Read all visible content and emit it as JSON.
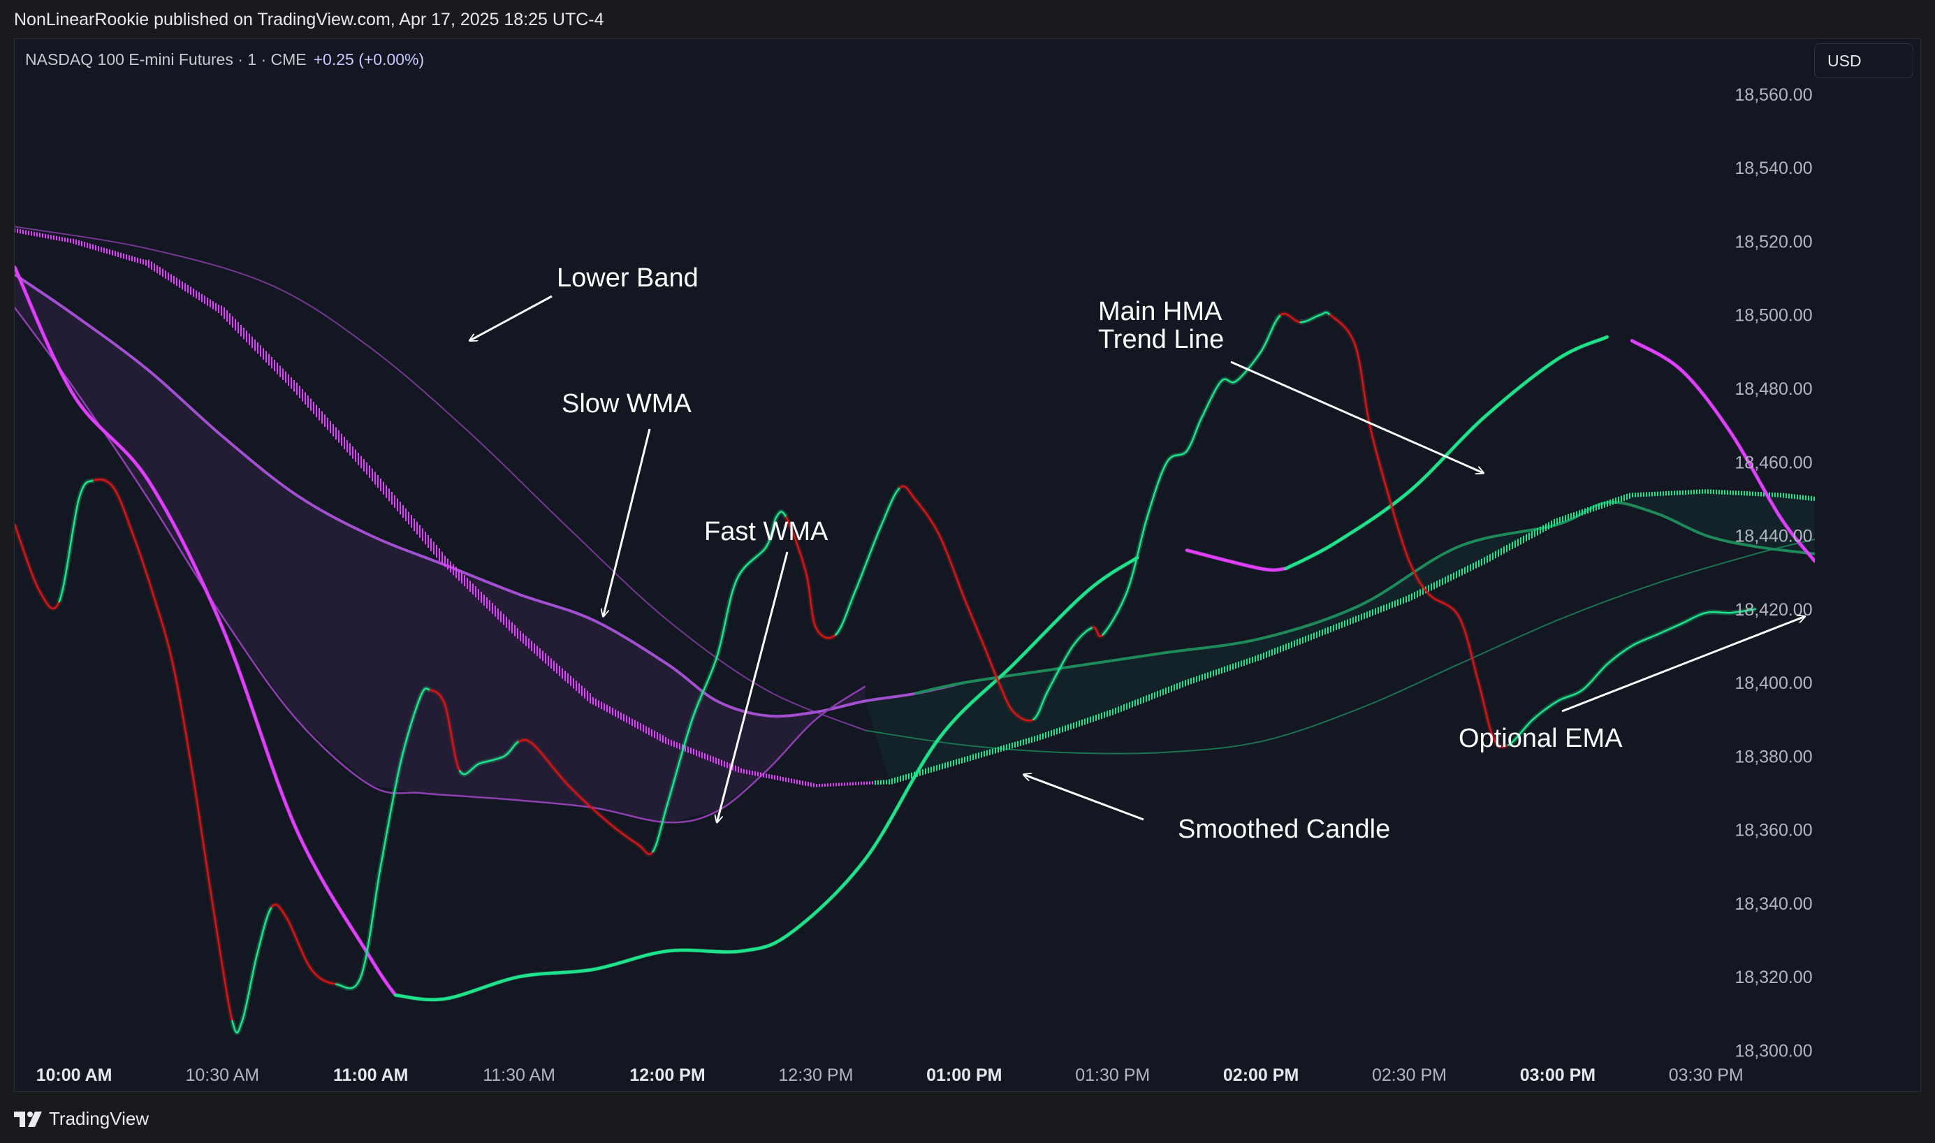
{
  "header": {
    "publisher": "NonLinearRookie published on TradingView.com, Apr 17, 2025 18:25 UTC-4"
  },
  "symbol": {
    "title": "NASDAQ 100 E-mini Futures · 1 · CME",
    "change": "+0.25 (+0.00%)"
  },
  "currency": {
    "label": "USD"
  },
  "footer": {
    "brand": "TradingView"
  },
  "colors": {
    "background": "#131722",
    "bull": "#1fe38a",
    "bull_dim": "#1e8a5a",
    "bear": "#d01818",
    "magenta": "#e040fb",
    "purple": "#8e3fb0",
    "text": "#ffffff"
  },
  "chart_data": {
    "type": "line",
    "title": "",
    "xlabel": "",
    "ylabel": "",
    "ylim": [
      18290,
      18575
    ],
    "xlim": [
      "09:48",
      "15:52"
    ],
    "y_ticks": [
      "18,560.00",
      "18,540.00",
      "18,520.00",
      "18,500.00",
      "18,480.00",
      "18,460.00",
      "18,440.00",
      "18,420.00",
      "18,400.00",
      "18,380.00",
      "18,360.00",
      "18,340.00",
      "18,320.00",
      "18,300.00"
    ],
    "x_ticks": [
      {
        "label": "10:00 AM",
        "time": "10:00",
        "bold": true
      },
      {
        "label": "10:30 AM",
        "time": "10:30",
        "bold": false
      },
      {
        "label": "11:00 AM",
        "time": "11:00",
        "bold": true
      },
      {
        "label": "11:30 AM",
        "time": "11:30",
        "bold": false
      },
      {
        "label": "12:00 PM",
        "time": "12:00",
        "bold": true
      },
      {
        "label": "12:30 PM",
        "time": "12:30",
        "bold": false
      },
      {
        "label": "01:00 PM",
        "time": "13:00",
        "bold": true
      },
      {
        "label": "01:30 PM",
        "time": "13:30",
        "bold": false
      },
      {
        "label": "02:00 PM",
        "time": "14:00",
        "bold": true
      },
      {
        "label": "02:30 PM",
        "time": "14:30",
        "bold": false
      },
      {
        "label": "03:00 PM",
        "time": "15:00",
        "bold": true
      },
      {
        "label": "03:30 PM",
        "time": "15:30",
        "bold": false
      }
    ],
    "grid": false,
    "series": [
      {
        "key": "lower_band",
        "style": "thin",
        "points": [
          [
            "09:48",
            18524
          ],
          [
            "10:15",
            18518
          ],
          [
            "10:40",
            18508
          ],
          [
            "11:00",
            18491
          ],
          [
            "11:20",
            18468
          ],
          [
            "11:40",
            18442
          ],
          [
            "12:00",
            18417
          ],
          [
            "12:20",
            18398
          ],
          [
            "12:40",
            18387
          ],
          [
            "13:00",
            18383
          ],
          [
            "13:20",
            18381
          ],
          [
            "13:40",
            18381
          ],
          [
            "14:00",
            18384
          ],
          [
            "14:20",
            18393
          ],
          [
            "14:40",
            18405
          ],
          [
            "15:00",
            18417
          ],
          [
            "15:20",
            18427
          ],
          [
            "15:40",
            18435
          ],
          [
            "15:52",
            18439
          ]
        ]
      },
      {
        "key": "slow_wma",
        "style": "medium",
        "points": [
          [
            "09:48",
            18511
          ],
          [
            "10:00",
            18500
          ],
          [
            "10:15",
            18485
          ],
          [
            "10:30",
            18467
          ],
          [
            "10:45",
            18451
          ],
          [
            "11:00",
            18440
          ],
          [
            "11:15",
            18432
          ],
          [
            "11:30",
            18424
          ],
          [
            "11:45",
            18417
          ],
          [
            "12:00",
            18405
          ],
          [
            "12:10",
            18395
          ],
          [
            "12:20",
            18391
          ],
          [
            "12:30",
            18392
          ],
          [
            "12:40",
            18395
          ],
          [
            "12:50",
            18397
          ],
          [
            "13:00",
            18400
          ],
          [
            "13:20",
            18404
          ],
          [
            "13:40",
            18408
          ],
          [
            "14:00",
            18412
          ],
          [
            "14:20",
            18421
          ],
          [
            "14:40",
            18437
          ],
          [
            "15:00",
            18443
          ],
          [
            "15:10",
            18449
          ],
          [
            "15:20",
            18446
          ],
          [
            "15:30",
            18440
          ],
          [
            "15:40",
            18437
          ],
          [
            "15:52",
            18435
          ]
        ]
      },
      {
        "key": "fast_wma",
        "style": "thin",
        "points": [
          [
            "09:48",
            18502
          ],
          [
            "10:00",
            18480
          ],
          [
            "10:15",
            18450
          ],
          [
            "10:30",
            18418
          ],
          [
            "10:45",
            18390
          ],
          [
            "11:00",
            18372
          ],
          [
            "11:10",
            18370
          ],
          [
            "11:20",
            18369
          ],
          [
            "11:30",
            18368
          ],
          [
            "11:45",
            18366
          ],
          [
            "12:00",
            18362
          ],
          [
            "12:10",
            18365
          ],
          [
            "12:20",
            18376
          ],
          [
            "12:30",
            18390
          ],
          [
            "12:40",
            18399
          ]
        ]
      },
      {
        "key": "smoothed_candle",
        "style": "ribbon",
        "points": [
          [
            "09:48",
            18523
          ],
          [
            "10:00",
            18520
          ],
          [
            "10:15",
            18514
          ],
          [
            "10:30",
            18501
          ],
          [
            "10:45",
            18480
          ],
          [
            "11:00",
            18457
          ],
          [
            "11:15",
            18433
          ],
          [
            "11:30",
            18413
          ],
          [
            "11:45",
            18395
          ],
          [
            "12:00",
            18384
          ],
          [
            "12:15",
            18376
          ],
          [
            "12:30",
            18372
          ],
          [
            "12:45",
            18373
          ],
          [
            "13:00",
            18379
          ],
          [
            "13:15",
            18385
          ],
          [
            "13:30",
            18392
          ],
          [
            "13:45",
            18400
          ],
          [
            "14:00",
            18407
          ],
          [
            "14:15",
            18415
          ],
          [
            "14:30",
            18423
          ],
          [
            "14:45",
            18433
          ],
          [
            "15:00",
            18444
          ],
          [
            "15:15",
            18451
          ],
          [
            "15:30",
            18452
          ],
          [
            "15:45",
            18451
          ],
          [
            "15:52",
            18450
          ]
        ]
      },
      {
        "key": "hma",
        "style": "thick",
        "points": [
          [
            "09:48",
            18513
          ],
          [
            "10:00",
            18478
          ],
          [
            "10:15",
            18455
          ],
          [
            "10:30",
            18415
          ],
          [
            "10:45",
            18360
          ],
          [
            "11:00",
            18325
          ],
          [
            "11:05",
            18315
          ],
          [
            "11:15",
            18314
          ],
          [
            "11:30",
            18320
          ],
          [
            "11:45",
            18322
          ],
          [
            "12:00",
            18327
          ],
          [
            "12:15",
            18327
          ],
          [
            "12:25",
            18332
          ],
          [
            "12:40",
            18352
          ],
          [
            "12:55",
            18385
          ],
          [
            "13:10",
            18405
          ],
          [
            "13:25",
            18425
          ],
          [
            "13:35",
            18434
          ],
          [
            "13:45",
            18436
          ],
          [
            "14:00",
            18431
          ],
          [
            "14:05",
            18431
          ],
          [
            "14:15",
            18438
          ],
          [
            "14:30",
            18452
          ],
          [
            "14:45",
            18472
          ],
          [
            "15:00",
            18488
          ],
          [
            "15:10",
            18494
          ],
          [
            "15:15",
            18493
          ],
          [
            "15:25",
            18485
          ],
          [
            "15:35",
            18468
          ],
          [
            "15:45",
            18445
          ],
          [
            "15:52",
            18433
          ]
        ]
      },
      {
        "key": "price_ema",
        "style": "price",
        "points": [
          [
            "09:48",
            18443
          ],
          [
            "09:53",
            18425
          ],
          [
            "09:57",
            18422
          ],
          [
            "10:01",
            18450
          ],
          [
            "10:04",
            18455
          ],
          [
            "10:08",
            18453
          ],
          [
            "10:12",
            18440
          ],
          [
            "10:16",
            18424
          ],
          [
            "10:20",
            18405
          ],
          [
            "10:24",
            18375
          ],
          [
            "10:28",
            18340
          ],
          [
            "10:32",
            18308
          ],
          [
            "10:34",
            18308
          ],
          [
            "10:37",
            18326
          ],
          [
            "10:40",
            18339
          ],
          [
            "10:43",
            18336
          ],
          [
            "10:48",
            18322
          ],
          [
            "10:53",
            18318
          ],
          [
            "10:58",
            18320
          ],
          [
            "11:02",
            18350
          ],
          [
            "11:06",
            18378
          ],
          [
            "11:10",
            18396
          ],
          [
            "11:12",
            18398
          ],
          [
            "11:15",
            18394
          ],
          [
            "11:18",
            18376
          ],
          [
            "11:22",
            18378
          ],
          [
            "11:27",
            18380
          ],
          [
            "11:30",
            18384
          ],
          [
            "11:33",
            18383
          ],
          [
            "11:40",
            18372
          ],
          [
            "11:48",
            18362
          ],
          [
            "11:54",
            18356
          ],
          [
            "11:57",
            18354
          ],
          [
            "12:00",
            18367
          ],
          [
            "12:05",
            18390
          ],
          [
            "12:10",
            18407
          ],
          [
            "12:14",
            18428
          ],
          [
            "12:20",
            18437
          ],
          [
            "12:22",
            18445
          ],
          [
            "12:24",
            18445
          ],
          [
            "12:28",
            18430
          ],
          [
            "12:30",
            18415
          ],
          [
            "12:34",
            18413
          ],
          [
            "12:38",
            18425
          ],
          [
            "12:43",
            18442
          ],
          [
            "12:47",
            18453
          ],
          [
            "12:50",
            18450
          ],
          [
            "12:55",
            18440
          ],
          [
            "13:00",
            18423
          ],
          [
            "13:04",
            18410
          ],
          [
            "13:07",
            18400
          ],
          [
            "13:10",
            18392
          ],
          [
            "13:14",
            18390
          ],
          [
            "13:17",
            18398
          ],
          [
            "13:22",
            18410
          ],
          [
            "13:26",
            18415
          ],
          [
            "13:28",
            18413
          ],
          [
            "13:33",
            18425
          ],
          [
            "13:37",
            18445
          ],
          [
            "13:41",
            18460
          ],
          [
            "13:45",
            18463
          ],
          [
            "13:48",
            18472
          ],
          [
            "13:52",
            18482
          ],
          [
            "13:55",
            18482
          ],
          [
            "14:00",
            18490
          ],
          [
            "14:04",
            18500
          ],
          [
            "14:08",
            18498
          ],
          [
            "14:12",
            18500
          ],
          [
            "14:14",
            18500
          ],
          [
            "14:19",
            18492
          ],
          [
            "14:22",
            18470
          ],
          [
            "14:26",
            18450
          ],
          [
            "14:30",
            18433
          ],
          [
            "14:34",
            18424
          ],
          [
            "14:40",
            18418
          ],
          [
            "14:44",
            18400
          ],
          [
            "14:47",
            18385
          ],
          [
            "14:50",
            18383
          ],
          [
            "14:55",
            18390
          ],
          [
            "15:00",
            18395
          ],
          [
            "15:05",
            18398
          ],
          [
            "15:10",
            18405
          ],
          [
            "15:15",
            18410
          ],
          [
            "15:20",
            18413
          ],
          [
            "15:25",
            18416
          ],
          [
            "15:30",
            18419
          ],
          [
            "15:35",
            18419
          ],
          [
            "15:40",
            18420
          ]
        ]
      }
    ],
    "annotations": [
      {
        "text": "Lower Band",
        "lines": [
          "Lower Band"
        ],
        "target": [
          "11:20",
          18493
        ]
      },
      {
        "text": "Slow WMA",
        "lines": [
          "Slow WMA"
        ],
        "target": [
          "11:47",
          18418
        ]
      },
      {
        "text": "Fast WMA",
        "lines": [
          "Fast WMA"
        ],
        "target": [
          "12:10",
          18362
        ]
      },
      {
        "text": "Main HMA Trend Line",
        "lines": [
          "Main HMA",
          "Trend Line"
        ],
        "target": [
          "14:45",
          18457
        ]
      },
      {
        "text": "Smoothed Candle",
        "lines": [
          "Smoothed Candle"
        ],
        "target": [
          "13:12",
          18375
        ]
      },
      {
        "text": "Optional EMA",
        "lines": [
          "Optional EMA"
        ],
        "target": [
          "15:50",
          18418
        ]
      }
    ]
  }
}
